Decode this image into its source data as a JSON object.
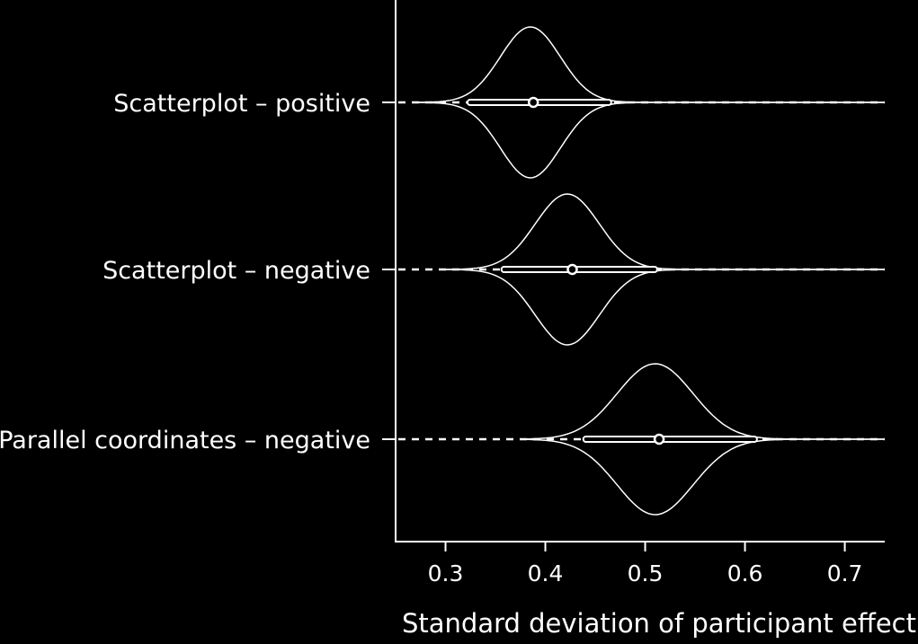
{
  "chart_data": {
    "type": "violin",
    "orientation": "horizontal",
    "categories": [
      "Scatterplot – positive",
      "Scatterplot – negative",
      "Parallel coordinates – negative"
    ],
    "xlabel": "Standard deviation of participant effect",
    "ylabel": "",
    "xlim": [
      0.25,
      0.74
    ],
    "xticks": [
      0.3,
      0.4,
      0.5,
      0.6,
      0.7
    ],
    "xtick_labels": [
      "0.3",
      "0.4",
      "0.5",
      "0.6",
      "0.7"
    ],
    "series": [
      {
        "category": "Scatterplot – positive",
        "median": 0.388,
        "interval": [
          0.322,
          0.466
        ],
        "mode": 0.385,
        "spread": 0.03,
        "range": [
          0.27,
          0.74
        ]
      },
      {
        "category": "Scatterplot – negative",
        "median": 0.427,
        "interval": [
          0.356,
          0.512
        ],
        "mode": 0.422,
        "spread": 0.032,
        "range": [
          0.3,
          0.74
        ]
      },
      {
        "category": "Parallel coordinates – negative",
        "median": 0.514,
        "interval": [
          0.438,
          0.612
        ],
        "mode": 0.51,
        "spread": 0.038,
        "range": [
          0.38,
          0.74
        ]
      }
    ],
    "grid": false,
    "legend": "none",
    "colors": {
      "background": "#000000",
      "foreground": "#ffffff"
    }
  }
}
